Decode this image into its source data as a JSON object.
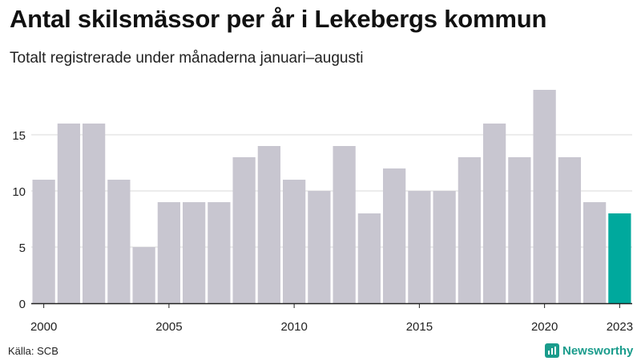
{
  "title": "Antal skilsmässor per år i Lekebergs kommun",
  "subtitle": "Totalt registrerade under månaderna januari–augusti",
  "source": "Källa: SCB",
  "brand": "Newsworthy",
  "colors": {
    "bar_default": "#c8c6d0",
    "bar_highlight": "#00a99d",
    "axis": "#222222",
    "grid": "#d9d9d9",
    "brand": "#1a9c8c"
  },
  "chart_data": {
    "type": "bar",
    "title": "Antal skilsmässor per år i Lekebergs kommun",
    "subtitle": "Totalt registrerade under månaderna januari–augusti",
    "xlabel": "",
    "ylabel": "",
    "categories": [
      2000,
      2001,
      2002,
      2003,
      2004,
      2005,
      2006,
      2007,
      2008,
      2009,
      2010,
      2011,
      2012,
      2013,
      2014,
      2015,
      2016,
      2017,
      2018,
      2019,
      2020,
      2021,
      2022,
      2023
    ],
    "values": [
      11,
      16,
      16,
      11,
      5,
      9,
      9,
      9,
      13,
      14,
      11,
      10,
      14,
      8,
      12,
      10,
      10,
      13,
      16,
      13,
      19,
      13,
      9,
      8
    ],
    "highlight_index": 23,
    "ylim": [
      0,
      19
    ],
    "yticks": [
      0,
      5,
      10,
      15
    ],
    "xtick_labels": [
      "2000",
      "2005",
      "2010",
      "2015",
      "2020",
      "2023"
    ],
    "grid": true
  }
}
